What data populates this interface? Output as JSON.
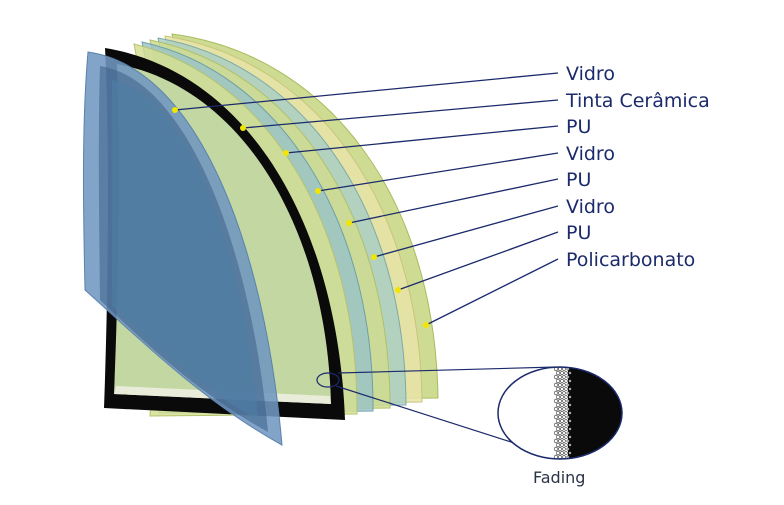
{
  "diagram": {
    "layers": [
      {
        "label": "Vidro"
      },
      {
        "label": "Tinta Cerâmica"
      },
      {
        "label": "PU"
      },
      {
        "label": "Vidro"
      },
      {
        "label": "PU"
      },
      {
        "label": "Vidro"
      },
      {
        "label": "PU"
      },
      {
        "label": "Policarbonato"
      }
    ],
    "detail_label": "Fading",
    "colors": {
      "leader_line": "#1b2a6b",
      "leader_dot": "#f2e600",
      "glass_blue": "#6f97c0",
      "frame_black": "#0a0a0a",
      "pu_green": "#c9d98a",
      "pu_yellow": "#e6e3a6",
      "glass_teal": "#9fc7c4"
    }
  }
}
